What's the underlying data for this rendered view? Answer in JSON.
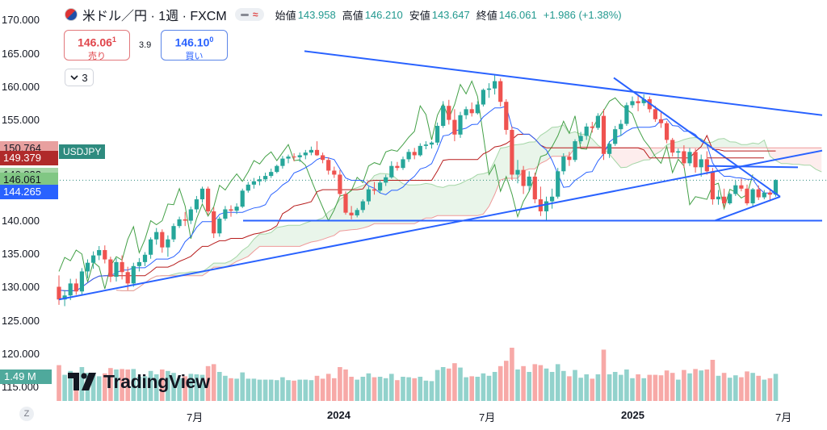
{
  "header": {
    "symbol": "米ドル／円 · 1週 · FXCM",
    "open_label": "始値",
    "open": "143.958",
    "high_label": "高値",
    "high": "146.210",
    "low_label": "安値",
    "low": "143.647",
    "close_label": "終値",
    "close": "146.061",
    "change": "+1.986 (+1.38%)",
    "flag_icon": "us-jp-flag-icon"
  },
  "trade": {
    "sell_price": "146.06",
    "sell_sup": "1",
    "sell_label": "売り",
    "spread": "3.9",
    "buy_price": "146.10",
    "buy_sup": "0",
    "buy_label": "買い"
  },
  "indicators_toggle": {
    "count": "3",
    "icon": "chevron-down-icon"
  },
  "price_tags": [
    {
      "value": "150.764",
      "bg": "#e8a09f",
      "fg": "#131722"
    },
    {
      "value": "149.379",
      "bg": "#b02a2a",
      "fg": "#ffffff"
    },
    {
      "value": "146.822",
      "bg": "#a5d6a7",
      "fg": "#131722"
    },
    {
      "value": "146.061",
      "bg": "#2e8b7f",
      "fg": "#ffffff"
    },
    {
      "value": "146.061",
      "bg": "#81c784",
      "fg": "#131722"
    },
    {
      "value": "144.265",
      "bg": "#2962ff",
      "fg": "#ffffff"
    }
  ],
  "symbol_tag": "USDJPY",
  "volume_tag": "1.49 M",
  "logo_text": "TradingView",
  "zoom_button": "Z",
  "colors": {
    "up": "#26a69a",
    "down": "#ef5350",
    "trendline": "#2962ff"
  },
  "chart_data": {
    "type": "candlestick",
    "yaxis_ticks": [
      "170.000",
      "165.000",
      "160.000",
      "155.000",
      "150.000",
      "145.000",
      "140.000",
      "135.000",
      "130.000",
      "125.000",
      "120.000",
      "115.000"
    ],
    "ylim": [
      113,
      171
    ],
    "xaxis_ticks": [
      "7月",
      "2024",
      "7月",
      "2025",
      "7月"
    ],
    "last_price": 146.061,
    "candles": [
      [
        130.1,
        131.8,
        127.4,
        128.2
      ],
      [
        128.2,
        129.6,
        127.2,
        128.8
      ],
      [
        128.8,
        131.3,
        128.1,
        130.6
      ],
      [
        130.6,
        131.3,
        128.9,
        129.4
      ],
      [
        129.4,
        132.9,
        128.9,
        132.4
      ],
      [
        132.4,
        134.2,
        131.4,
        133.7
      ],
      [
        133.7,
        135.4,
        132.8,
        134.8
      ],
      [
        134.8,
        136.2,
        134.1,
        135.6
      ],
      [
        135.6,
        136.3,
        133.6,
        134.2
      ],
      [
        134.2,
        134.6,
        130.8,
        131.6
      ],
      [
        131.6,
        134.4,
        130.9,
        133.8
      ],
      [
        133.8,
        134.8,
        131.2,
        132.3
      ],
      [
        132.3,
        133.1,
        129.6,
        130.6
      ],
      [
        130.6,
        133.7,
        130.1,
        133.2
      ],
      [
        133.2,
        134.4,
        132.4,
        133.8
      ],
      [
        133.8,
        135.3,
        133.2,
        134.9
      ],
      [
        134.9,
        137.5,
        134.3,
        137.2
      ],
      [
        137.2,
        138.9,
        136.4,
        138.3
      ],
      [
        138.3,
        138.7,
        135.2,
        136.0
      ],
      [
        136.0,
        137.8,
        134.6,
        137.2
      ],
      [
        137.2,
        139.6,
        136.8,
        139.2
      ],
      [
        139.2,
        140.6,
        138.9,
        140.2
      ],
      [
        140.2,
        141.3,
        139.2,
        140.0
      ],
      [
        140.0,
        142.1,
        139.5,
        141.7
      ],
      [
        141.7,
        143.7,
        141.2,
        143.2
      ],
      [
        143.2,
        145.1,
        142.7,
        144.8
      ],
      [
        144.8,
        145.1,
        140.9,
        141.4
      ],
      [
        141.4,
        142.0,
        137.4,
        138.1
      ],
      [
        138.1,
        140.6,
        137.6,
        140.3
      ],
      [
        140.3,
        142.2,
        140.0,
        141.7
      ],
      [
        141.7,
        142.3,
        140.6,
        141.5
      ],
      [
        141.5,
        142.6,
        141.0,
        142.1
      ],
      [
        142.1,
        144.8,
        141.9,
        144.5
      ],
      [
        144.5,
        145.8,
        144.2,
        145.4
      ],
      [
        145.4,
        146.4,
        144.8,
        145.9
      ],
      [
        145.9,
        146.7,
        145.3,
        146.2
      ],
      [
        146.2,
        147.2,
        145.8,
        146.7
      ],
      [
        146.7,
        147.8,
        146.4,
        147.3
      ],
      [
        147.3,
        148.4,
        147.1,
        148.2
      ],
      [
        148.2,
        149.7,
        147.8,
        149.3
      ],
      [
        149.3,
        149.9,
        148.6,
        149.6
      ],
      [
        149.6,
        150.1,
        148.9,
        149.5
      ],
      [
        149.5,
        150.2,
        148.8,
        149.8
      ],
      [
        149.8,
        150.6,
        149.2,
        150.2
      ],
      [
        150.2,
        151.1,
        149.8,
        150.6
      ],
      [
        150.6,
        151.9,
        149.7,
        149.8
      ],
      [
        149.8,
        150.2,
        148.6,
        149.1
      ],
      [
        149.1,
        149.5,
        146.9,
        147.5
      ],
      [
        147.5,
        148.1,
        146.4,
        146.9
      ],
      [
        146.9,
        147.6,
        143.6,
        144.0
      ],
      [
        144.0,
        144.4,
        140.9,
        141.2
      ],
      [
        141.2,
        142.2,
        140.2,
        140.8
      ],
      [
        140.8,
        141.9,
        140.5,
        141.6
      ],
      [
        141.6,
        143.2,
        141.2,
        142.9
      ],
      [
        142.9,
        145.1,
        142.4,
        144.7
      ],
      [
        144.7,
        145.8,
        143.9,
        144.5
      ],
      [
        144.5,
        146.1,
        144.1,
        145.7
      ],
      [
        145.7,
        146.9,
        145.2,
        146.5
      ],
      [
        146.5,
        148.9,
        146.3,
        148.2
      ],
      [
        148.2,
        148.8,
        147.5,
        147.9
      ],
      [
        147.9,
        149.6,
        147.6,
        149.2
      ],
      [
        149.2,
        150.7,
        148.8,
        150.3
      ],
      [
        150.3,
        150.9,
        149.2,
        149.8
      ],
      [
        149.8,
        151.6,
        149.6,
        151.2
      ],
      [
        151.2,
        151.9,
        150.7,
        151.4
      ],
      [
        151.4,
        151.9,
        150.8,
        151.7
      ],
      [
        151.7,
        154.7,
        151.3,
        154.2
      ],
      [
        154.2,
        157.9,
        153.9,
        157.2
      ],
      [
        157.2,
        158.1,
        154.4,
        155.1
      ],
      [
        155.1,
        156.7,
        151.9,
        152.9
      ],
      [
        152.9,
        156.3,
        152.4,
        155.8
      ],
      [
        155.8,
        157.1,
        155.2,
        156.7
      ],
      [
        156.7,
        157.7,
        155.6,
        156.1
      ],
      [
        156.1,
        157.9,
        155.9,
        157.4
      ],
      [
        157.4,
        159.8,
        157.1,
        159.6
      ],
      [
        159.6,
        160.6,
        158.4,
        159.8
      ],
      [
        159.8,
        161.9,
        158.9,
        160.9
      ],
      [
        160.9,
        161.3,
        157.1,
        157.8
      ],
      [
        157.8,
        158.2,
        152.9,
        153.6
      ],
      [
        153.6,
        154.1,
        146.1,
        146.9
      ],
      [
        146.9,
        149.1,
        145.6,
        147.6
      ],
      [
        147.6,
        148.2,
        144.0,
        145.2
      ],
      [
        145.2,
        147.4,
        144.4,
        146.6
      ],
      [
        146.6,
        147.2,
        142.6,
        143.2
      ],
      [
        143.2,
        145.1,
        140.7,
        141.4
      ],
      [
        141.4,
        143.6,
        139.9,
        142.9
      ],
      [
        142.9,
        144.8,
        141.8,
        143.6
      ],
      [
        143.6,
        147.9,
        143.3,
        147.4
      ],
      [
        147.4,
        150.1,
        146.9,
        149.6
      ],
      [
        149.6,
        150.3,
        148.2,
        149.1
      ],
      [
        149.1,
        152.2,
        148.8,
        151.9
      ],
      [
        151.9,
        153.3,
        151.5,
        152.7
      ],
      [
        152.7,
        154.6,
        152.1,
        154.1
      ],
      [
        154.1,
        154.8,
        153.2,
        153.9
      ],
      [
        153.9,
        156.1,
        153.6,
        155.7
      ],
      [
        155.7,
        156.7,
        149.1,
        150.0
      ],
      [
        150.0,
        151.9,
        149.4,
        151.5
      ],
      [
        151.5,
        154.2,
        151.2,
        153.7
      ],
      [
        153.7,
        155.1,
        152.7,
        154.5
      ],
      [
        154.5,
        157.7,
        154.2,
        157.3
      ],
      [
        157.3,
        158.6,
        156.9,
        157.9
      ],
      [
        157.9,
        158.9,
        156.4,
        157.6
      ],
      [
        157.6,
        158.9,
        157.2,
        158.2
      ],
      [
        158.2,
        158.6,
        156.2,
        156.7
      ],
      [
        156.7,
        157.2,
        154.8,
        155.2
      ],
      [
        155.2,
        156.2,
        153.9,
        154.6
      ],
      [
        154.6,
        154.9,
        151.6,
        152.1
      ],
      [
        152.1,
        152.4,
        149.6,
        150.2
      ],
      [
        150.2,
        150.8,
        149.4,
        150.4
      ],
      [
        150.4,
        151.3,
        147.9,
        148.6
      ],
      [
        148.6,
        150.9,
        148.2,
        150.3
      ],
      [
        150.3,
        150.8,
        147.2,
        148.0
      ],
      [
        148.0,
        149.9,
        146.6,
        149.2
      ],
      [
        149.2,
        150.4,
        146.9,
        147.4
      ],
      [
        147.4,
        147.9,
        142.4,
        143.2
      ],
      [
        143.2,
        144.6,
        142.4,
        143.6
      ],
      [
        143.6,
        144.8,
        142.0,
        142.6
      ],
      [
        142.6,
        144.2,
        142.4,
        144.0
      ],
      [
        144.0,
        146.0,
        143.7,
        145.3
      ],
      [
        145.3,
        146.3,
        144.4,
        144.8
      ],
      [
        144.8,
        145.4,
        142.3,
        142.6
      ],
      [
        142.6,
        144.9,
        142.1,
        144.7
      ],
      [
        144.7,
        145.3,
        143.1,
        143.5
      ],
      [
        143.5,
        144.6,
        143.2,
        144.2
      ],
      [
        144.2,
        144.6,
        142.9,
        143.9
      ],
      [
        143.9,
        146.2,
        143.6,
        146.1
      ]
    ],
    "volume_label": "1.49 M"
  }
}
